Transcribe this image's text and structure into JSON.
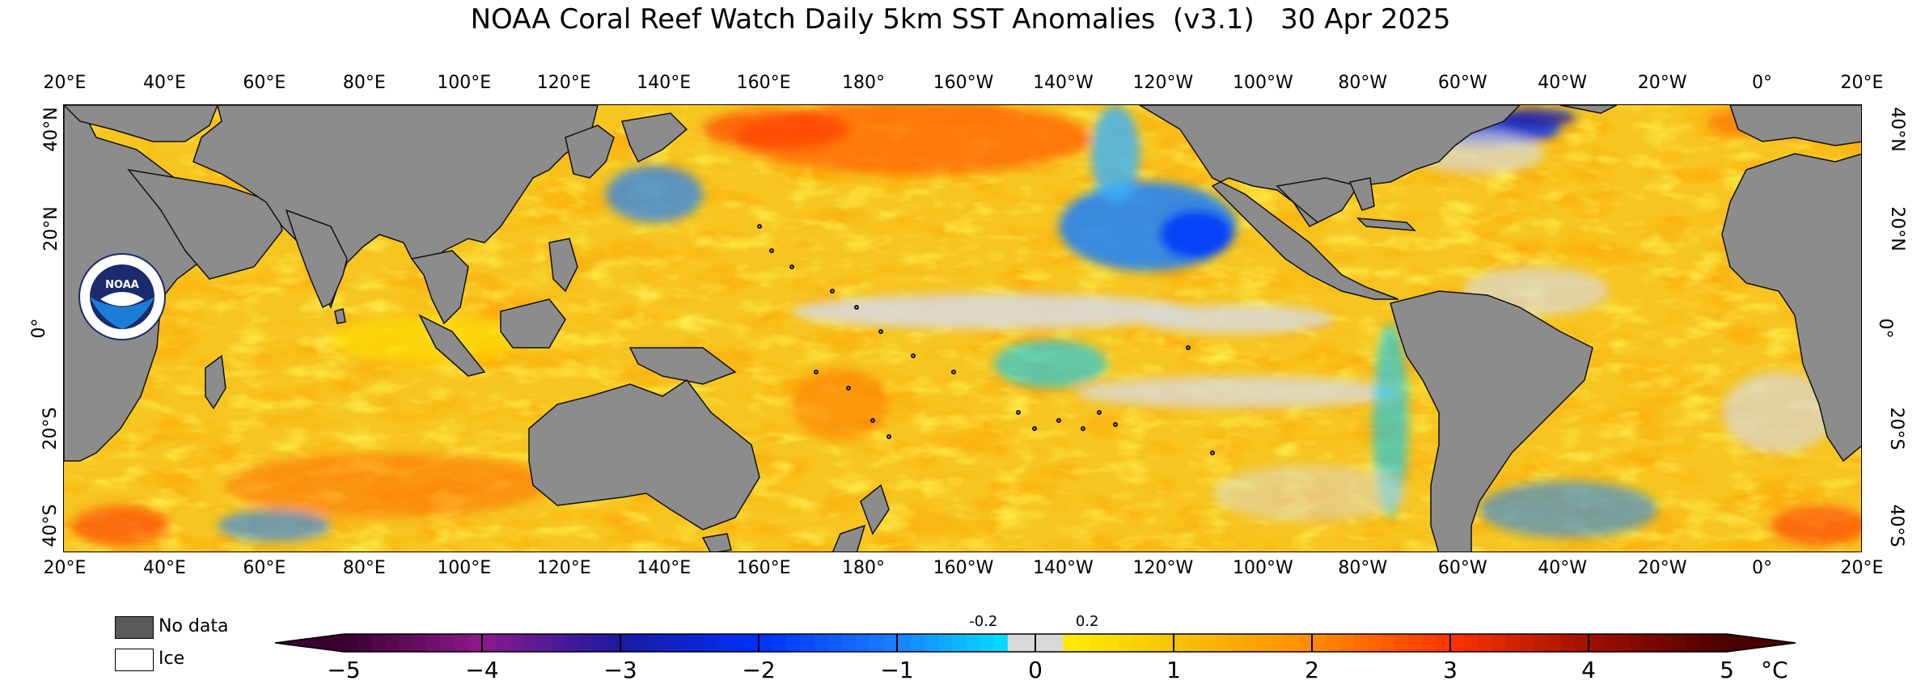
{
  "title": "NOAA Coral Reef Watch Daily 5km SST Anomalies  (v3.1)   30 Apr 2025",
  "lon_ticks": [
    "20°E",
    "40°E",
    "60°E",
    "80°E",
    "100°E",
    "120°E",
    "140°E",
    "160°E",
    "180°",
    "160°W",
    "140°W",
    "120°W",
    "100°W",
    "80°W",
    "60°W",
    "40°W",
    "20°W",
    "0°",
    "20°E"
  ],
  "lat_ticks_left": [
    "40°N",
    "20°N",
    "0°",
    "20°S",
    "40°S"
  ],
  "lat_ticks_right": [
    "40°N",
    "20°N",
    "0°",
    "20°S",
    "40°S"
  ],
  "legend": {
    "no_data": "No data",
    "ice": "Ice"
  },
  "colorbar": {
    "ticks": [
      "−5",
      "−4",
      "−3",
      "−2",
      "−1",
      "0",
      "1",
      "2",
      "3",
      "4",
      "5"
    ],
    "small_ticks": [
      "-0.2",
      "0.2"
    ],
    "unit": "°C",
    "range": [
      -5,
      5
    ],
    "colors": {
      "-5": "#3a0030",
      "-4": "#8c1a8c",
      "-3": "#1a1aa0",
      "-2": "#0030ff",
      "-1": "#1a80ff",
      "-0.2": "#00e0ff",
      "0": "#d9d9d9",
      "0.2": "#ffee00",
      "1": "#f5c400",
      "2": "#ff8c00",
      "3": "#ff3300",
      "4": "#a01000",
      "5": "#4a0000"
    }
  },
  "colors": {
    "land": "#8c8c8c",
    "ocean_base": "#f7c520",
    "no_data": "#595959",
    "ice": "#ffffff"
  },
  "logo": {
    "text": "NOAA"
  }
}
